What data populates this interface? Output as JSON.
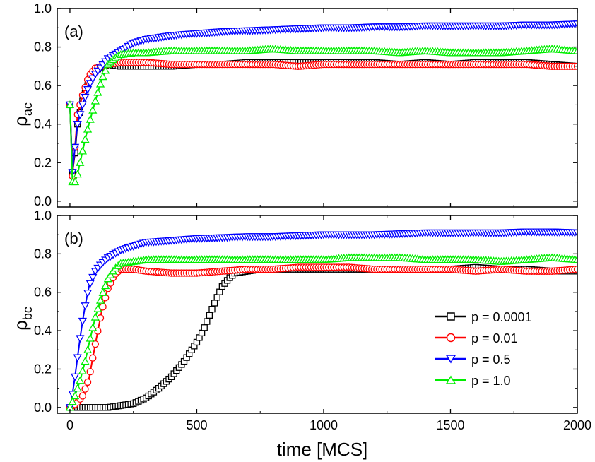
{
  "chart_data": [
    {
      "panel_label": "(a)",
      "type": "line",
      "xlabel": "",
      "ylabel": "ρ",
      "ylabel_sub": "ac",
      "xlim": [
        -50,
        2000
      ],
      "ylim": [
        -0.03,
        1.0
      ],
      "x_ticks": [
        0,
        500,
        1000,
        1500,
        2000
      ],
      "y_ticks": [
        0.0,
        0.2,
        0.4,
        0.6,
        0.8,
        1.0
      ],
      "y_tick_labels": [
        "0.0",
        "0.2",
        "0.4",
        "0.6",
        "0.8",
        "1.0"
      ],
      "show_x_tick_labels": false,
      "series": [
        {
          "name": "p = 0.0001",
          "color": "#000000",
          "marker": "square",
          "x": [
            0,
            10,
            20,
            30,
            50,
            75,
            100,
            150,
            200,
            300,
            400,
            500,
            600,
            700,
            800,
            900,
            1000,
            1100,
            1200,
            1300,
            1400,
            1500,
            1600,
            1700,
            1800,
            1900,
            2000
          ],
          "y": [
            0.5,
            0.15,
            0.25,
            0.4,
            0.52,
            0.62,
            0.68,
            0.71,
            0.7,
            0.7,
            0.7,
            0.71,
            0.71,
            0.72,
            0.72,
            0.72,
            0.72,
            0.72,
            0.72,
            0.71,
            0.72,
            0.71,
            0.72,
            0.72,
            0.72,
            0.71,
            0.7
          ]
        },
        {
          "name": "p = 0.01",
          "color": "#ff0000",
          "marker": "circle",
          "x": [
            0,
            10,
            20,
            30,
            50,
            75,
            100,
            150,
            200,
            300,
            400,
            500,
            600,
            700,
            800,
            900,
            1000,
            1100,
            1200,
            1300,
            1400,
            1500,
            1600,
            1700,
            1800,
            1900,
            2000
          ],
          "y": [
            0.5,
            0.13,
            0.28,
            0.45,
            0.55,
            0.65,
            0.69,
            0.71,
            0.72,
            0.72,
            0.71,
            0.71,
            0.71,
            0.71,
            0.71,
            0.7,
            0.71,
            0.71,
            0.71,
            0.71,
            0.71,
            0.71,
            0.71,
            0.71,
            0.71,
            0.7,
            0.7
          ]
        },
        {
          "name": "p = 0.5",
          "color": "#0000ff",
          "marker": "triangle-down",
          "x": [
            0,
            10,
            20,
            30,
            50,
            75,
            100,
            150,
            200,
            250,
            300,
            400,
            500,
            600,
            700,
            800,
            900,
            1000,
            1100,
            1200,
            1300,
            1400,
            1500,
            1600,
            1700,
            1800,
            1900,
            2000
          ],
          "y": [
            0.5,
            0.15,
            0.28,
            0.4,
            0.5,
            0.6,
            0.66,
            0.74,
            0.78,
            0.82,
            0.84,
            0.86,
            0.87,
            0.88,
            0.885,
            0.89,
            0.895,
            0.9,
            0.9,
            0.905,
            0.905,
            0.91,
            0.91,
            0.91,
            0.91,
            0.915,
            0.915,
            0.92
          ]
        },
        {
          "name": "p = 1.0",
          "color": "#00ee00",
          "marker": "triangle-up",
          "x": [
            0,
            10,
            20,
            30,
            40,
            50,
            60,
            75,
            100,
            125,
            150,
            175,
            200,
            250,
            300,
            400,
            500,
            600,
            700,
            800,
            900,
            1000,
            1100,
            1200,
            1300,
            1400,
            1500,
            1600,
            1700,
            1800,
            1900,
            2000
          ],
          "y": [
            0.5,
            0.1,
            0.1,
            0.14,
            0.2,
            0.26,
            0.32,
            0.4,
            0.52,
            0.63,
            0.71,
            0.74,
            0.76,
            0.77,
            0.77,
            0.78,
            0.78,
            0.78,
            0.78,
            0.79,
            0.78,
            0.78,
            0.78,
            0.78,
            0.77,
            0.78,
            0.77,
            0.77,
            0.77,
            0.78,
            0.79,
            0.78
          ]
        }
      ]
    },
    {
      "panel_label": "(b)",
      "type": "line",
      "xlabel": "time [MCS]",
      "ylabel": "ρ",
      "ylabel_sub": "bc",
      "xlim": [
        -50,
        2000
      ],
      "ylim": [
        -0.03,
        1.0
      ],
      "x_ticks": [
        0,
        500,
        1000,
        1500,
        2000
      ],
      "x_tick_labels": [
        "0",
        "500",
        "1000",
        "1500",
        "2000"
      ],
      "y_ticks": [
        0.0,
        0.2,
        0.4,
        0.6,
        0.8,
        1.0
      ],
      "y_tick_labels": [
        "0.0",
        "0.2",
        "0.4",
        "0.6",
        "0.8",
        "1.0"
      ],
      "show_x_tick_labels": true,
      "legend_position": "bottom-right",
      "series": [
        {
          "name": "p = 0.0001",
          "color": "#000000",
          "marker": "square",
          "x": [
            0,
            50,
            100,
            150,
            200,
            250,
            300,
            350,
            400,
            450,
            500,
            525,
            550,
            575,
            600,
            625,
            650,
            700,
            750,
            800,
            900,
            1000,
            1100,
            1200,
            1300,
            1400,
            1500,
            1600,
            1700,
            1800,
            1900,
            2000
          ],
          "y": [
            0.0,
            0.0,
            0.0,
            0.0,
            0.01,
            0.02,
            0.05,
            0.1,
            0.16,
            0.24,
            0.34,
            0.4,
            0.48,
            0.56,
            0.63,
            0.67,
            0.7,
            0.71,
            0.72,
            0.72,
            0.72,
            0.72,
            0.72,
            0.72,
            0.72,
            0.72,
            0.72,
            0.73,
            0.72,
            0.72,
            0.71,
            0.71
          ]
        },
        {
          "name": "p = 0.01",
          "color": "#ff0000",
          "marker": "circle",
          "x": [
            0,
            25,
            50,
            75,
            100,
            125,
            150,
            175,
            200,
            250,
            300,
            400,
            500,
            600,
            700,
            800,
            900,
            1000,
            1100,
            1200,
            1300,
            1400,
            1500,
            1600,
            1700,
            1800,
            1900,
            2000
          ],
          "y": [
            0.0,
            0.02,
            0.06,
            0.15,
            0.33,
            0.5,
            0.62,
            0.69,
            0.72,
            0.72,
            0.71,
            0.7,
            0.7,
            0.71,
            0.72,
            0.72,
            0.73,
            0.73,
            0.73,
            0.72,
            0.72,
            0.72,
            0.72,
            0.71,
            0.72,
            0.71,
            0.71,
            0.72
          ]
        },
        {
          "name": "p = 0.5",
          "color": "#0000ff",
          "marker": "triangle-down",
          "x": [
            0,
            10,
            20,
            30,
            40,
            50,
            60,
            75,
            100,
            125,
            150,
            200,
            250,
            300,
            400,
            500,
            600,
            700,
            800,
            900,
            1000,
            1100,
            1200,
            1300,
            1400,
            1500,
            1600,
            1700,
            1800,
            1900,
            2000
          ],
          "y": [
            0.0,
            0.07,
            0.16,
            0.26,
            0.36,
            0.45,
            0.53,
            0.63,
            0.71,
            0.75,
            0.78,
            0.82,
            0.84,
            0.86,
            0.87,
            0.88,
            0.885,
            0.89,
            0.89,
            0.895,
            0.9,
            0.9,
            0.9,
            0.905,
            0.91,
            0.91,
            0.91,
            0.91,
            0.915,
            0.915,
            0.91
          ]
        },
        {
          "name": "p = 1.0",
          "color": "#00ee00",
          "marker": "triangle-up",
          "x": [
            0,
            20,
            40,
            60,
            80,
            100,
            125,
            150,
            175,
            200,
            250,
            300,
            400,
            500,
            600,
            700,
            800,
            900,
            1000,
            1100,
            1200,
            1300,
            1400,
            1500,
            1600,
            1700,
            1800,
            1900,
            2000
          ],
          "y": [
            0.0,
            0.06,
            0.14,
            0.24,
            0.36,
            0.47,
            0.58,
            0.67,
            0.72,
            0.75,
            0.76,
            0.77,
            0.77,
            0.77,
            0.77,
            0.77,
            0.77,
            0.77,
            0.77,
            0.78,
            0.78,
            0.78,
            0.77,
            0.77,
            0.77,
            0.76,
            0.77,
            0.78,
            0.77
          ]
        }
      ]
    }
  ]
}
